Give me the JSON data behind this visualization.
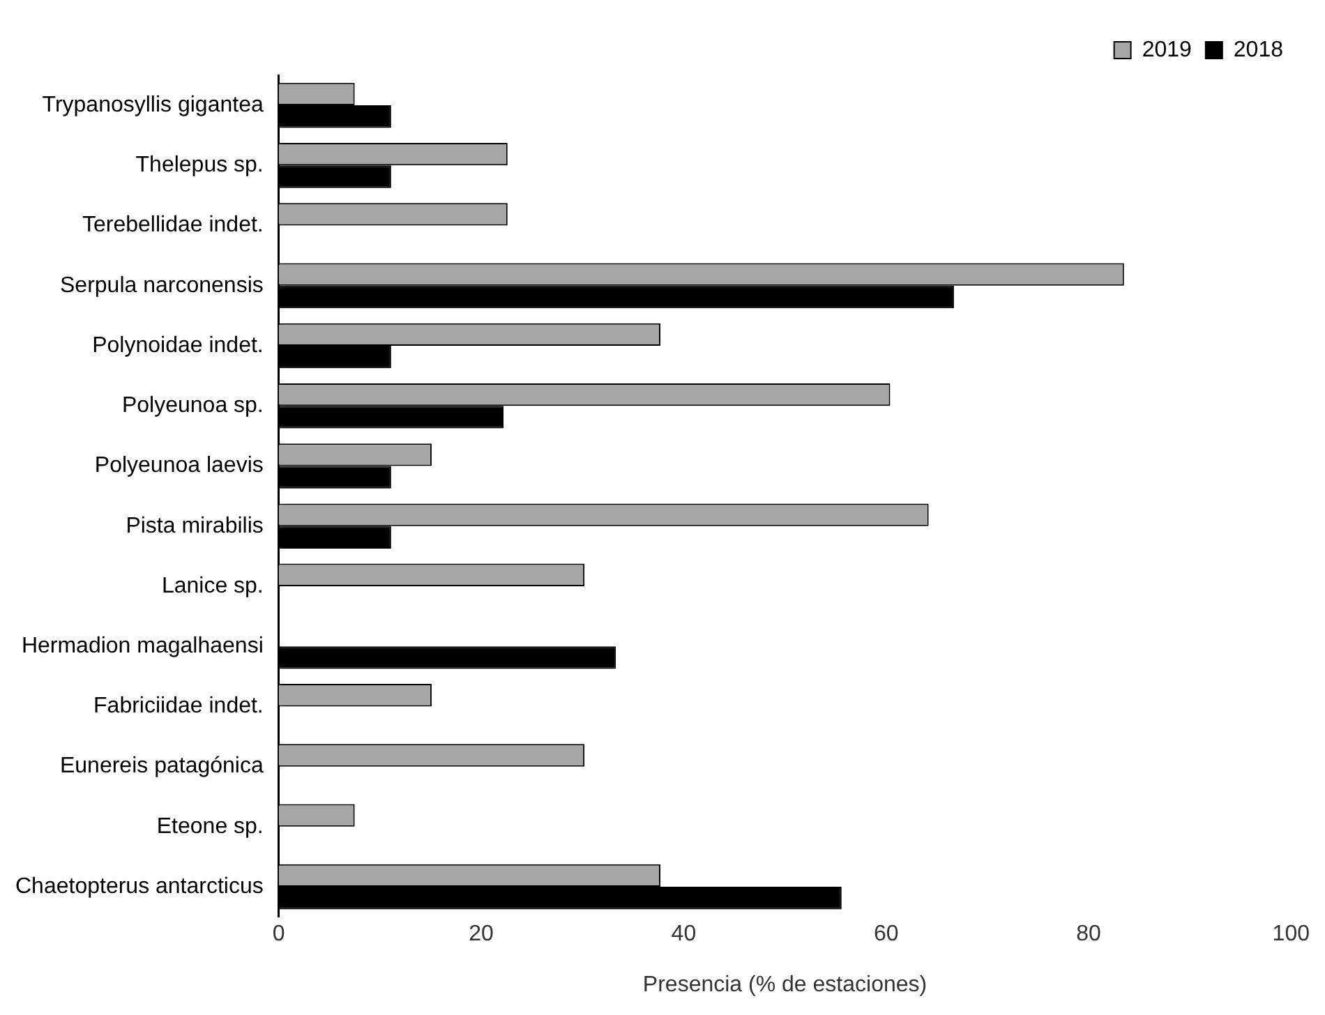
{
  "chart_data": {
    "type": "bar",
    "orientation": "horizontal",
    "xlabel": "Presencia (% de estaciones)",
    "categories": [
      "Trypanosyllis gigantea",
      "Thelepus sp.",
      "Terebellidae indet.",
      "Serpula narconensis",
      "Polynoidae indet.",
      "Polyeunoa sp.",
      "Polyeunoa laevis",
      "Pista mirabilis",
      "Lanice sp.",
      "Hermadion magalhaensi",
      "Fabriciidae indet.",
      "Eunereis patagónica",
      "Eteone sp.",
      "Chaetopterus antarcticus"
    ],
    "series": [
      {
        "name": "2019",
        "color": "#a6a6a6",
        "values": [
          7.5,
          22.6,
          22.6,
          83.5,
          37.7,
          60.4,
          15.1,
          64.2,
          30.2,
          null,
          15.1,
          30.2,
          7.5,
          37.7
        ]
      },
      {
        "name": "2018",
        "color": "#000000",
        "values": [
          11.1,
          11.1,
          null,
          66.7,
          11.1,
          22.2,
          11.1,
          11.1,
          null,
          33.3,
          null,
          null,
          null,
          55.6
        ]
      }
    ],
    "xlim": [
      0,
      100
    ],
    "xticks": [
      0,
      20,
      40,
      60,
      80,
      100
    ],
    "grid": false,
    "legend": "top right"
  }
}
